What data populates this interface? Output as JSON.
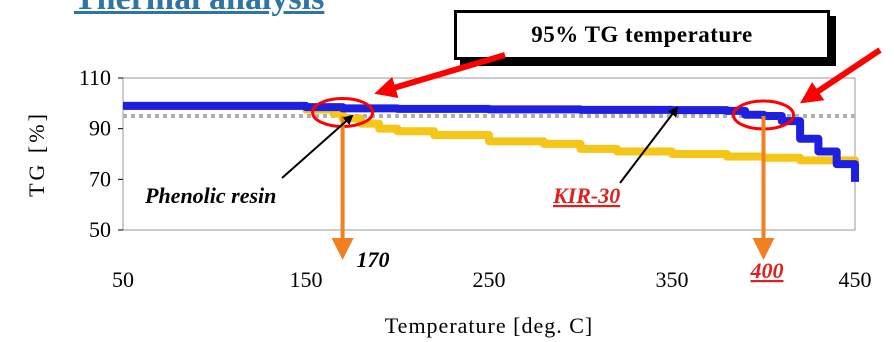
{
  "chart_data": {
    "type": "line",
    "title": "Thermal analysis",
    "callout": "95% TG temperature",
    "xlabel": "Temperature [deg. C]",
    "ylabel": "TG [%]",
    "xlim": [
      50,
      450
    ],
    "ylim": [
      50,
      110
    ],
    "xticks": [
      50,
      150,
      250,
      350,
      450
    ],
    "yticks": [
      50,
      70,
      90,
      110
    ],
    "reference_line": {
      "y": 95,
      "style": "dotted",
      "color": "#b0b0b0"
    },
    "series": [
      {
        "name": "KIR-30",
        "color": "#1f1fe0",
        "x": [
          50,
          100,
          150,
          170,
          200,
          250,
          300,
          350,
          380,
          390,
          400,
          410,
          420,
          430,
          440,
          450
        ],
        "y": [
          99,
          99,
          98.5,
          98,
          97.8,
          97.6,
          97.4,
          97.3,
          97,
          95.5,
          95,
          93,
          86,
          81,
          76,
          69
        ]
      },
      {
        "name": "Phenolic resin",
        "color": "#f5c518",
        "x": [
          50,
          100,
          150,
          165,
          170,
          180,
          190,
          200,
          220,
          250,
          280,
          300,
          320,
          350,
          380,
          400,
          420,
          450
        ],
        "y": [
          99,
          99,
          97.5,
          96,
          94,
          92,
          90,
          89,
          87.5,
          85,
          84,
          82,
          81,
          80,
          79,
          78.5,
          77.5,
          76
        ]
      }
    ],
    "annotations": [
      {
        "text": "Phenolic resin",
        "color": "#000000",
        "underline": false
      },
      {
        "text": "KIR-30",
        "color": "#e0201e",
        "underline": true
      },
      {
        "text": "170",
        "x": 170,
        "color": "#000000",
        "underline": false
      },
      {
        "text": "400",
        "x": 400,
        "color": "#e0201e",
        "underline": true
      }
    ],
    "markers": [
      {
        "x": 170,
        "y": 96,
        "shape": "ellipse",
        "color": "#ff0000"
      },
      {
        "x": 400,
        "y": 95,
        "shape": "ellipse",
        "color": "#ff0000"
      }
    ],
    "grid": false,
    "legend": "none"
  }
}
